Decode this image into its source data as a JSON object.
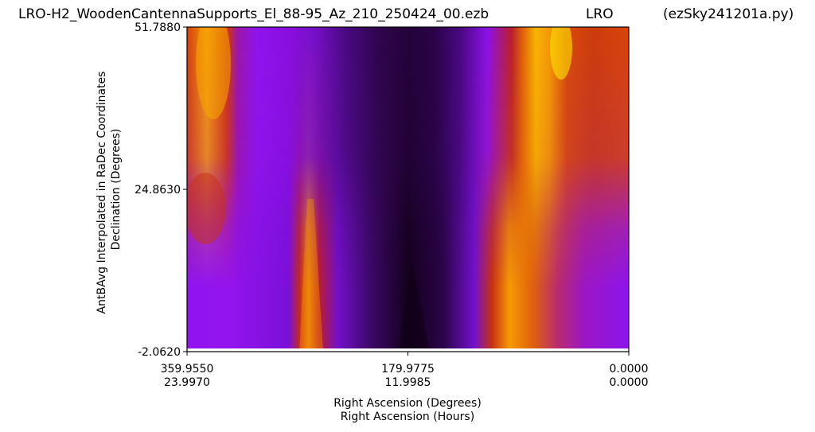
{
  "header": {
    "filename": "LRO-H2_WoodenCantennaSupports_El_88-95_Az_210_250424_00.ezb",
    "site": "LRO",
    "program": "(ezSky241201a.py)"
  },
  "chart_data": {
    "type": "heatmap",
    "colormap": "gnuplot",
    "xlabel": "Right Ascension (Degrees)",
    "xlabel2": "Right Ascension (Hours)",
    "ylabel": "AntBAvg Interpolated in RaDec Coordinates",
    "ylabel2": "Declination (Degrees)",
    "xlim_degrees": [
      359.955,
      0.0
    ],
    "xlim_hours": [
      23.997,
      0.0
    ],
    "ylim": [
      -2.062,
      51.788
    ],
    "x_ticks": [
      {
        "deg": "359.9550",
        "hours": "23.9970"
      },
      {
        "deg": "179.9775",
        "hours": "11.9985"
      },
      {
        "deg": "0.0000",
        "hours": "0.0000"
      }
    ],
    "y_ticks": [
      "51.7880",
      "24.8630",
      "-2.0620"
    ],
    "grid": false,
    "legend": "none"
  }
}
